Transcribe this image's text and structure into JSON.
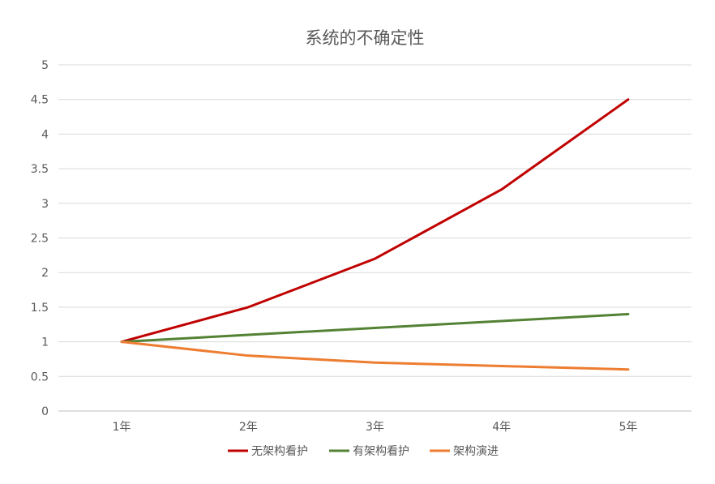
{
  "chart_data": {
    "type": "line",
    "title": "系统的不确定性",
    "categories": [
      "1年",
      "2年",
      "3年",
      "4年",
      "5年"
    ],
    "ylim": [
      0,
      5
    ],
    "yticks": [
      "0",
      "0.5",
      "1",
      "1.5",
      "2",
      "2.5",
      "3",
      "3.5",
      "4",
      "4.5",
      "5"
    ],
    "grid": true,
    "legend_position": "bottom",
    "series": [
      {
        "name": "无架构看护",
        "color": "#c00000",
        "values": [
          1,
          1.5,
          2.2,
          3.2,
          4.5
        ]
      },
      {
        "name": "有架构看护",
        "color": "#548235",
        "values": [
          1,
          1.1,
          1.2,
          1.3,
          1.4
        ]
      },
      {
        "name": "架构演进",
        "color": "#ed7d31",
        "values": [
          1,
          0.8,
          0.7,
          0.65,
          0.6
        ]
      }
    ]
  }
}
